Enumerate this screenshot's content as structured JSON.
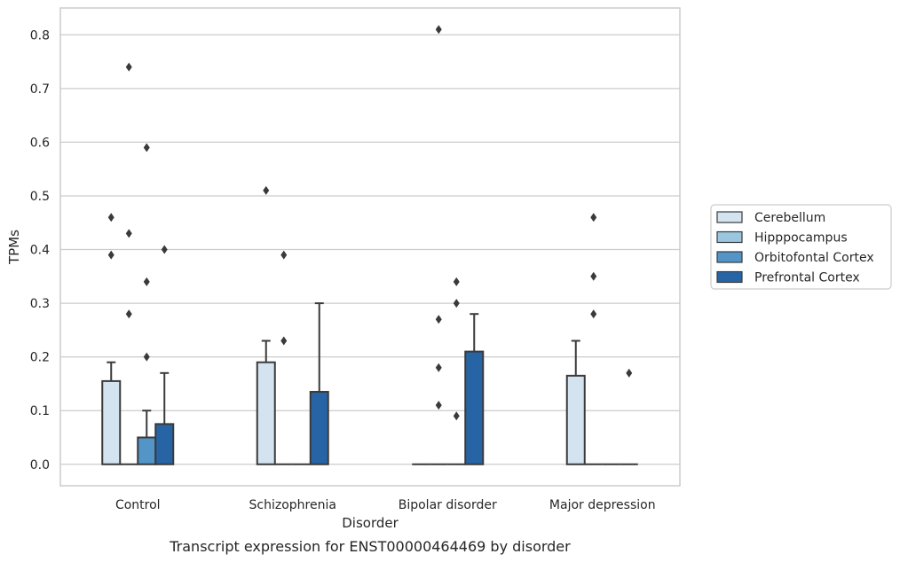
{
  "chart_data": {
    "type": "bar",
    "categories": [
      "Control",
      "Schizophrenia",
      "Bipolar disorder",
      "Major depression"
    ],
    "xlabel": "Disorder",
    "ylabel": "TPMs",
    "caption": "Transcript expression for ENST00000464469 by disorder",
    "ylim": [
      -0.04,
      0.85
    ],
    "yticks": [
      0.0,
      0.1,
      0.2,
      0.3,
      0.4,
      0.5,
      0.6,
      0.7,
      0.8
    ],
    "ytick_labels": [
      "0.0",
      "0.1",
      "0.2",
      "0.3",
      "0.4",
      "0.5",
      "0.6",
      "0.7",
      "0.8"
    ],
    "grid": true,
    "legend_position": "right",
    "series": [
      {
        "name": "Cerebellum",
        "color": "#d4e3f0",
        "values": [
          0.155,
          0.19,
          0.0,
          0.165
        ],
        "err_upper": [
          0.19,
          0.23,
          null,
          0.23
        ],
        "outliers": [
          [
            0.46,
            0.39
          ],
          [
            0.51
          ],
          [],
          []
        ]
      },
      {
        "name": "Hipppocampus",
        "color": "#9ac6df",
        "values": [
          0.0,
          0.0,
          0.0,
          0.0
        ],
        "err_upper": [
          null,
          null,
          null,
          null
        ],
        "outliers": [
          [
            0.74,
            0.43,
            0.28
          ],
          [
            0.39,
            0.23
          ],
          [
            0.81,
            0.27,
            0.18,
            0.11
          ],
          [
            0.46,
            0.35,
            0.28
          ]
        ]
      },
      {
        "name": "Orbitofontal Cortex",
        "color": "#5295c6",
        "values": [
          0.05,
          0.0,
          0.0,
          0.0
        ],
        "err_upper": [
          0.1,
          null,
          null,
          null
        ],
        "outliers": [
          [
            0.59,
            0.34,
            0.2
          ],
          [],
          [
            0.34,
            0.3,
            0.09
          ],
          []
        ]
      },
      {
        "name": "Prefrontal Cortex",
        "color": "#2764a5",
        "values": [
          0.075,
          0.135,
          0.21,
          0.0
        ],
        "err_upper": [
          0.17,
          0.3,
          0.28,
          null
        ],
        "outliers": [
          [
            0.4
          ],
          [],
          [],
          [
            0.17
          ]
        ]
      }
    ]
  }
}
